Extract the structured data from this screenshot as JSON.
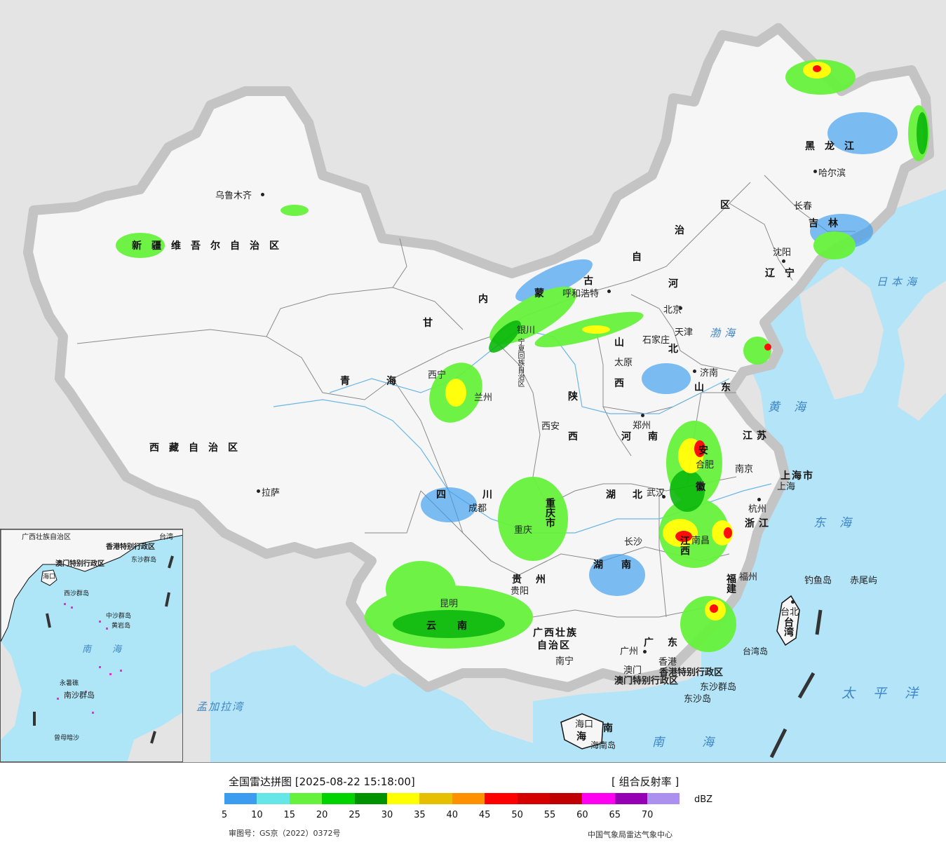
{
  "legend": {
    "title": "全国雷达拼图 [2025-08-22 15:18:00]",
    "product": "[ 组合反射率 ]",
    "unit": "dBZ",
    "ticks": [
      "5",
      "10",
      "15",
      "20",
      "25",
      "30",
      "35",
      "40",
      "45",
      "50",
      "55",
      "60",
      "65",
      "70"
    ],
    "colors": [
      "#3c9cf0",
      "#66e6e6",
      "#66f23c",
      "#00d400",
      "#009200",
      "#ffff00",
      "#e6c000",
      "#ff9000",
      "#ff0000",
      "#d40000",
      "#c00000",
      "#ff00f0",
      "#9600b4",
      "#ac90f0"
    ],
    "map_review_number": "审图号：GS京（2022）0372号",
    "source": "中国气象局雷达气象中心"
  },
  "map": {
    "provinces": {
      "xinjiang": "新疆维吾尔自治区",
      "xizang": "西藏自治区",
      "qinghai": "青海",
      "gansu": "甘",
      "neimenggu_a": "内",
      "neimenggu_b": "蒙",
      "neimenggu_c": "古",
      "neimenggu_d": "自",
      "neimenggu_e": "治",
      "neimenggu_f": "区",
      "heilongjiang": "黑龙江",
      "jilin": "吉林",
      "liaoning": "辽宁",
      "hebei_a": "河",
      "hebei_b": "北",
      "shanxi_a": "山",
      "shanxi_b": "西",
      "shandong": "山东",
      "henan": "河南",
      "shaanxi_a": "陕",
      "shaanxi_b": "西",
      "jiangsu": "江苏",
      "anhui_a": "安",
      "anhui_b": "徽",
      "sichuan": "四川",
      "chongqing": "重庆市",
      "hubei": "湖北",
      "hunan": "湖南",
      "jiangxi": "江西",
      "zhejiang": "浙江",
      "fujian": "福建",
      "guizhou_a": "贵",
      "guizhou_b": "州",
      "yunnan": "云南",
      "guangxi_a": "广西壮族",
      "guangxi_b": "自治区",
      "guangdong": "广东",
      "hainan_a": "海",
      "hainan_b": "南",
      "shanghai": "上海市",
      "ningxia": "宁夏回族自治区",
      "taiwan": "台湾"
    },
    "cities": {
      "urumqi": "乌鲁木齐",
      "lhasa": "拉萨",
      "xining": "西宁",
      "lanzhou": "兰州",
      "yinchuan": "银川",
      "hohhot": "呼和浩特",
      "beijing": "北京",
      "tianjin": "天津",
      "shijiazhuang": "石家庄",
      "taiyuan": "太原",
      "jinan": "济南",
      "zhengzhou": "郑州",
      "xian": "西安",
      "chengdu": "成都",
      "wuhan": "武汉",
      "hefei": "合肥",
      "nanjing": "南京",
      "shanghai": "上海",
      "hangzhou": "杭州",
      "nanchang": "南昌",
      "changsha": "长沙",
      "fuzhou": "福州",
      "taipei": "台北",
      "guiyang": "贵阳",
      "kunming": "昆明",
      "nanning": "南宁",
      "guangzhou": "广州",
      "hongkong": "香港",
      "macau": "澳门",
      "haikou": "海口",
      "harbin": "哈尔滨",
      "changchun": "长春",
      "shenyang": "沈阳",
      "chongqing_city": "重庆"
    },
    "special": {
      "hk_sar": "香港特别行政区",
      "macau_sar": "澳门特别行政区",
      "dongsha_islands": "东沙群岛",
      "dongsha_island": "东沙岛",
      "diaoyu": "钓鱼岛",
      "chiwei": "赤尾屿",
      "taiwan_island": "台湾岛",
      "hainan_island": "海南岛"
    },
    "seas": {
      "bohai": "渤海",
      "huanghai": "黄海",
      "donghai": "东海",
      "nanhai": "南海",
      "pacific": "太平洋",
      "japan_sea": "日本海",
      "bengal": "孟加拉湾"
    },
    "inset": {
      "nanhai": "南海",
      "hk_sar": "香港特别行政区",
      "macau_sar": "澳门特别行政区",
      "dongsha": "东沙群岛",
      "xisha": "西沙群岛",
      "zhongsha": "中沙群岛",
      "huangyan": "黄岩岛",
      "nansha": "南沙群岛",
      "zengmu": "曾母暗沙",
      "yongshu": "永暑礁",
      "guangxi": "广西壮族自治区",
      "taiwan": "台湾",
      "haikou": "海口"
    }
  }
}
